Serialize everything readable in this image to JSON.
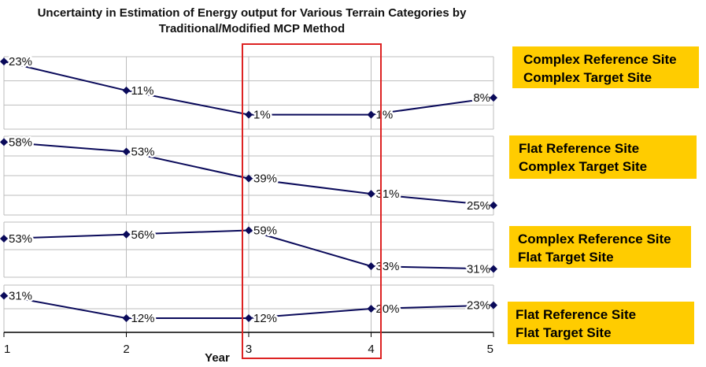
{
  "chart_data": {
    "type": "line",
    "title": "Uncertainty in Estimation of Energy output for Various Terrain Categories by Traditional/Modified MCP Method",
    "xlabel": "Year",
    "x": [
      1,
      2,
      3,
      4,
      5
    ],
    "x_tick_labels": [
      "1",
      "2",
      "3",
      "4",
      "5"
    ],
    "grid": true,
    "highlight": {
      "x_range": [
        3,
        4
      ],
      "color": "#DD2222"
    },
    "line_color": "#0A0A5A",
    "legend_color": "#FFCC00",
    "panels": [
      {
        "name": "Complex Reference Site / Complex Target Site",
        "legend": [
          "Complex Reference Site",
          "Complex Target Site"
        ],
        "values": [
          23,
          11,
          1,
          1,
          8
        ],
        "labels": [
          "23%",
          "11%",
          "1%",
          "1%",
          "8%"
        ],
        "ylim": [
          -5,
          25
        ]
      },
      {
        "name": "Flat Reference Site / Complex Target Site",
        "legend": [
          "Flat Reference Site",
          "Complex Target Site"
        ],
        "values": [
          58,
          53,
          39,
          31,
          25
        ],
        "labels": [
          "58%",
          "53%",
          "39%",
          "31%",
          "25%"
        ],
        "ylim": [
          20,
          61
        ]
      },
      {
        "name": "Complex Reference Site / Flat Target Site",
        "legend": [
          "Complex Reference Site",
          "Flat Target Site"
        ],
        "values": [
          53,
          56,
          59,
          33,
          31
        ],
        "labels": [
          "53%",
          "56%",
          "59%",
          "33%",
          "31%"
        ],
        "ylim": [
          25,
          65
        ]
      },
      {
        "name": "Flat Reference Site / Flat Target Site",
        "legend": [
          "Flat Reference Site",
          "Flat Target Site"
        ],
        "values": [
          31,
          12,
          12,
          20,
          23
        ],
        "labels": [
          "31%",
          "12%",
          "12%",
          "20%",
          "23%"
        ],
        "ylim": [
          0,
          40
        ]
      }
    ]
  }
}
